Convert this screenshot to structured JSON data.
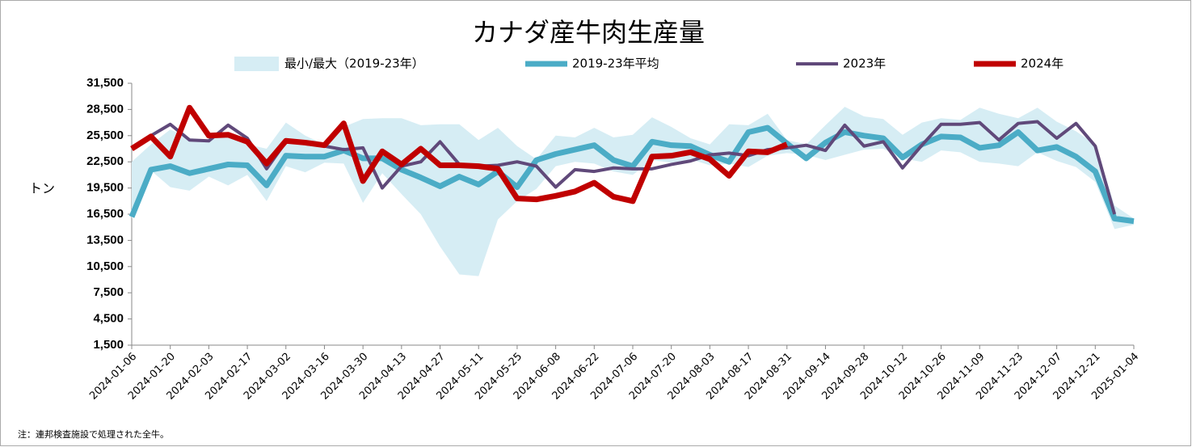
{
  "chart_data": {
    "type": "line",
    "title": "カナダ産牛肉生産量",
    "ylabel": "トン",
    "note": "注：連邦検査施設で処理された全牛。",
    "categories": [
      "2024-01-06",
      null,
      "2024-01-20",
      null,
      "2024-02-03",
      null,
      "2024-02-17",
      null,
      "2024-03-02",
      null,
      "2024-03-16",
      null,
      "2024-03-30",
      null,
      "2024-04-13",
      null,
      "2024-04-27",
      null,
      "2024-05-11",
      null,
      "2024-05-25",
      null,
      "2024-06-08",
      null,
      "2024-06-22",
      null,
      "2024-07-06",
      null,
      "2024-07-20",
      null,
      "2024-08-03",
      null,
      "2024-08-17",
      null,
      "2024-08-31",
      null,
      "2024-09-14",
      null,
      "2024-09-28",
      null,
      "2024-10-12",
      null,
      "2024-10-26",
      null,
      "2024-11-09",
      null,
      "2024-11-23",
      null,
      "2024-12-07",
      null,
      "2024-12-21",
      null,
      "2025-01-04"
    ],
    "ylim": [
      1500,
      31500
    ],
    "yticks": [
      {
        "value": 1500,
        "label": "1,500"
      },
      {
        "value": 4500,
        "label": "4,500"
      },
      {
        "value": 7500,
        "label": "7,500"
      },
      {
        "value": 10500,
        "label": "10,500"
      },
      {
        "value": 13500,
        "label": "13,500"
      },
      {
        "value": 16500,
        "label": "16,500"
      },
      {
        "value": 19500,
        "label": "19,500"
      },
      {
        "value": 22500,
        "label": "22,500"
      },
      {
        "value": 25500,
        "label": "25,500"
      },
      {
        "value": 28500,
        "label": "28,500"
      },
      {
        "value": 31500,
        "label": "31,500"
      }
    ],
    "legend": "top",
    "series": [
      {
        "name": "最小/最大（2019-23年）",
        "color": "#d6edf4",
        "kind": "band",
        "high": [
          22500,
          24500,
          26200,
          25200,
          25000,
          25700,
          24500,
          24000,
          27000,
          25500,
          24500,
          26500,
          27400,
          27500,
          27500,
          26700,
          26800,
          26800,
          25000,
          26400,
          24300,
          22800,
          25500,
          25300,
          26400,
          25300,
          25600,
          27600,
          26500,
          25200,
          24500,
          26800,
          26700,
          28000,
          25000,
          24500,
          26700,
          28800,
          27700,
          27400,
          25600,
          27000,
          27500,
          27300,
          28700,
          28000,
          27500,
          28700,
          27100,
          26000,
          24500,
          17500,
          16000
        ],
        "low": [
          16000,
          21500,
          19600,
          19200,
          20800,
          19800,
          21000,
          18000,
          22000,
          21300,
          22400,
          22300,
          17800,
          21200,
          18800,
          16500,
          12800,
          9600,
          9400,
          15900,
          18000,
          19400,
          22000,
          22500,
          22300,
          21400,
          21000,
          22700,
          22400,
          22800,
          22100,
          22300,
          21900,
          23200,
          23500,
          23300,
          22700,
          23300,
          23900,
          24000,
          22900,
          22500,
          23800,
          23600,
          22500,
          22300,
          22000,
          23600,
          22600,
          21900,
          20200,
          14800,
          15300
        ]
      },
      {
        "name": "2019-23年平均",
        "color": "#4bacc6",
        "width": 7,
        "values": [
          16200,
          21600,
          22000,
          21200,
          21700,
          22200,
          22100,
          19800,
          23200,
          23100,
          23100,
          23800,
          22900,
          22900,
          21600,
          20700,
          19700,
          20800,
          19900,
          21400,
          19600,
          22700,
          23400,
          23900,
          24400,
          22700,
          22000,
          24800,
          24400,
          24300,
          23300,
          22500,
          25900,
          26400,
          24600,
          22900,
          24700,
          25900,
          25500,
          25200,
          23000,
          24500,
          25400,
          25300,
          24100,
          24400,
          25900,
          23800,
          24200,
          23100,
          21400,
          16000,
          15700
        ]
      },
      {
        "name": "2023年",
        "color": "#60497a",
        "width": 4,
        "values": [
          24000,
          25500,
          26800,
          25000,
          24900,
          26700,
          25200,
          21700,
          24800,
          24600,
          24300,
          23900,
          24100,
          19500,
          22000,
          22500,
          24800,
          22200,
          22000,
          22100,
          22500,
          22000,
          19600,
          21600,
          21400,
          21800,
          21700,
          21700,
          22200,
          22600,
          23300,
          23500,
          23200,
          23900,
          24100,
          24400,
          23800,
          26700,
          24300,
          24800,
          21800,
          24400,
          26800,
          26800,
          27000,
          25000,
          26900,
          27100,
          25200,
          26900,
          24300,
          16500,
          null
        ]
      },
      {
        "name": "2024年",
        "color": "#c00000",
        "width": 7,
        "values": [
          24000,
          25400,
          23100,
          28700,
          25500,
          25600,
          24800,
          22300,
          24900,
          24700,
          24400,
          26900,
          20300,
          23700,
          22200,
          24000,
          22100,
          22100,
          22000,
          21700,
          18300,
          18200,
          18600,
          19100,
          20100,
          18500,
          18000,
          23100,
          23200,
          23600,
          22800,
          20900,
          23700,
          23600,
          24500,
          null,
          null,
          null,
          null,
          null,
          null,
          null,
          null,
          null,
          null,
          null,
          null,
          null,
          null,
          null,
          null,
          null,
          null
        ]
      }
    ]
  }
}
